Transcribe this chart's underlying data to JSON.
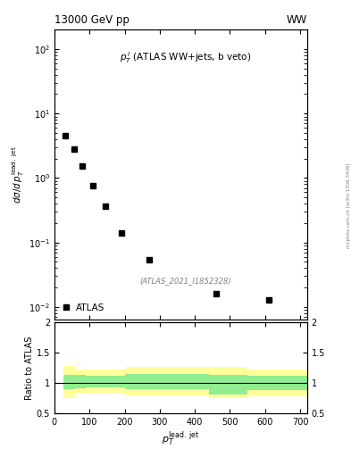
{
  "title_left": "13000 GeV pp",
  "title_right": "WW",
  "watermark": "mcplots.cern.ch [arXiv:1306.3436]",
  "ref_label": "(ATLAS_2021_I1852328)",
  "legend_label": "ATLAS",
  "xlabel": "$p_T^{\\rm lead.\\ jet}$",
  "ylabel": "$d\\sigma/d\\,p_T^{\\rm lead.\\ jet}$",
  "ratio_ylabel": "Ratio to ATLAS",
  "data_x": [
    30,
    55,
    80,
    110,
    145,
    190,
    270,
    460,
    610
  ],
  "data_y": [
    4.5,
    2.8,
    1.55,
    0.75,
    0.37,
    0.14,
    0.054,
    0.016,
    0.013
  ],
  "ylim_log": [
    -2.2,
    2.3
  ],
  "xlim": [
    0,
    720
  ],
  "ratio_ylim": [
    0.5,
    2.0
  ],
  "band_edges": [
    25,
    60,
    90,
    120,
    160,
    200,
    440,
    550,
    720
  ],
  "band_green_low": [
    0.9,
    0.92,
    0.93,
    0.93,
    0.93,
    0.9,
    0.82,
    0.88
  ],
  "band_green_high": [
    1.14,
    1.13,
    1.12,
    1.12,
    1.12,
    1.15,
    1.14,
    1.12
  ],
  "band_yellow_low": [
    0.75,
    0.83,
    0.84,
    0.84,
    0.84,
    0.8,
    0.76,
    0.78
  ],
  "band_yellow_high": [
    1.28,
    1.23,
    1.22,
    1.22,
    1.22,
    1.27,
    1.26,
    1.22
  ],
  "marker_color": "black",
  "marker": "s",
  "marker_size": 4,
  "green_color": "#90EE90",
  "yellow_color": "#FFFF99",
  "background_color": "#ffffff"
}
